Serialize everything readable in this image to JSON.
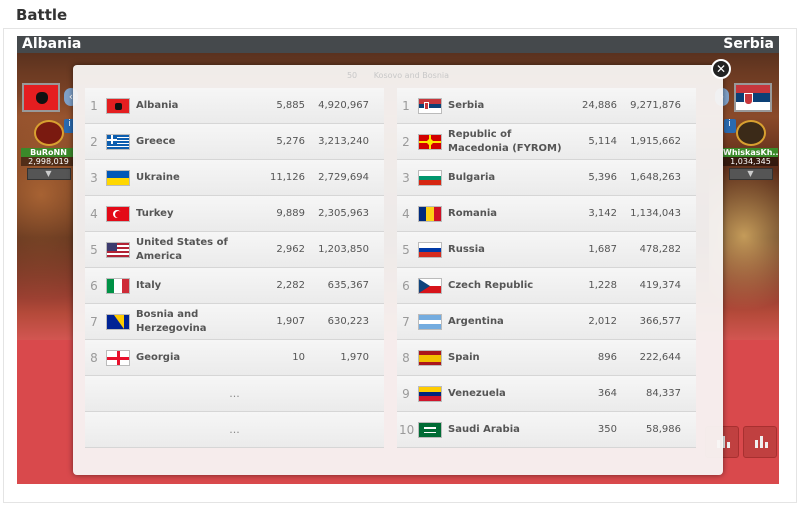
{
  "page": {
    "section_title": "Battle"
  },
  "battle": {
    "attacker": "Albania",
    "defender": "Serbia",
    "modal_title_number": "50",
    "modal_title": "Kosovo and Bosnia"
  },
  "heroes": {
    "left": {
      "name": "BuRoNN",
      "damage": "2,998,019"
    },
    "right": {
      "name": "WhiskasKh...",
      "damage": "1,034,345"
    }
  },
  "icons": {
    "close": "close-icon",
    "prev": "chevron-left-icon",
    "next": "chevron-right-icon",
    "dropdown": "chevron-down-icon",
    "stats": "bar-chart-icon",
    "info": "info-icon"
  },
  "colors": {
    "header_bg": "#45494c",
    "hero_name_bg": "#3b8a2a",
    "floor_red": "#d9494c"
  },
  "left_rankings": [
    {
      "rank": "1",
      "country": "Albania",
      "kills": "5,885",
      "damage": "4,920,967",
      "flag": "albania"
    },
    {
      "rank": "2",
      "country": "Greece",
      "kills": "5,276",
      "damage": "3,213,240",
      "flag": "greece"
    },
    {
      "rank": "3",
      "country": "Ukraine",
      "kills": "11,126",
      "damage": "2,729,694",
      "flag": "ukraine"
    },
    {
      "rank": "4",
      "country": "Turkey",
      "kills": "9,889",
      "damage": "2,305,963",
      "flag": "turkey"
    },
    {
      "rank": "5",
      "country": "United States of America",
      "kills": "2,962",
      "damage": "1,203,850",
      "flag": "usa"
    },
    {
      "rank": "6",
      "country": "Italy",
      "kills": "2,282",
      "damage": "635,367",
      "flag": "italy"
    },
    {
      "rank": "7",
      "country": "Bosnia and Herzegovina",
      "kills": "1,907",
      "damage": "630,223",
      "flag": "bosnia"
    },
    {
      "rank": "8",
      "country": "Georgia",
      "kills": "10",
      "damage": "1,970",
      "flag": "georgia"
    }
  ],
  "left_empty": [
    "...",
    "..."
  ],
  "right_rankings": [
    {
      "rank": "1",
      "country": "Serbia",
      "kills": "24,886",
      "damage": "9,271,876",
      "flag": "serbia"
    },
    {
      "rank": "2",
      "country": "Republic of Macedonia (FYROM)",
      "kills": "5,114",
      "damage": "1,915,662",
      "flag": "macedonia"
    },
    {
      "rank": "3",
      "country": "Bulgaria",
      "kills": "5,396",
      "damage": "1,648,263",
      "flag": "bulgaria"
    },
    {
      "rank": "4",
      "country": "Romania",
      "kills": "3,142",
      "damage": "1,134,043",
      "flag": "romania"
    },
    {
      "rank": "5",
      "country": "Russia",
      "kills": "1,687",
      "damage": "478,282",
      "flag": "russia"
    },
    {
      "rank": "6",
      "country": "Czech Republic",
      "kills": "1,228",
      "damage": "419,374",
      "flag": "czech"
    },
    {
      "rank": "7",
      "country": "Argentina",
      "kills": "2,012",
      "damage": "366,577",
      "flag": "argentina"
    },
    {
      "rank": "8",
      "country": "Spain",
      "kills": "896",
      "damage": "222,644",
      "flag": "spain"
    },
    {
      "rank": "9",
      "country": "Venezuela",
      "kills": "364",
      "damage": "84,337",
      "flag": "venezuela"
    },
    {
      "rank": "10",
      "country": "Saudi Arabia",
      "kills": "350",
      "damage": "58,986",
      "flag": "saudi"
    }
  ]
}
